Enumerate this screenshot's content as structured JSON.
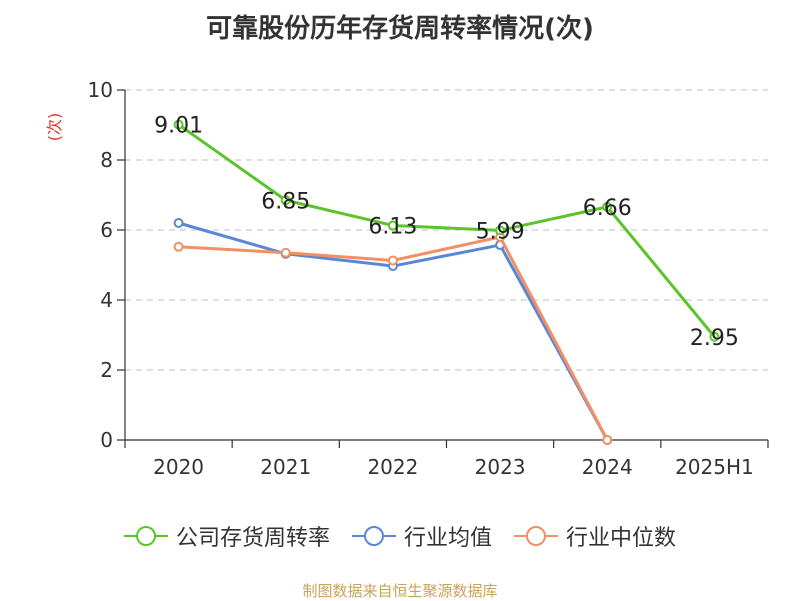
{
  "chart_data": {
    "type": "line",
    "title": "可靠股份历年存货周转率情况(次)",
    "ylabel": "(次)",
    "xlabel": "",
    "categories": [
      "2020",
      "2021",
      "2022",
      "2023",
      "2024",
      "2025H1"
    ],
    "ylim": [
      0,
      10
    ],
    "yticks": [
      0,
      2,
      4,
      6,
      8,
      10
    ],
    "grid": "horizontal dashed",
    "legend_position": "bottom",
    "series": [
      {
        "name": "公司存货周转率",
        "color": "#5cc42a",
        "values": [
          9.01,
          6.85,
          6.13,
          5.99,
          6.66,
          2.95
        ],
        "labels": [
          "9.01",
          "6.85",
          "6.13",
          "5.99",
          "6.66",
          "2.95"
        ]
      },
      {
        "name": "行业均值",
        "color": "#5b86d6",
        "values": [
          6.2,
          5.32,
          4.97,
          5.57,
          0,
          null
        ]
      },
      {
        "name": "行业中位数",
        "color": "#f28f64",
        "values": [
          5.52,
          5.35,
          5.13,
          5.8,
          0,
          null
        ]
      }
    ]
  },
  "source": "制图数据来自恒生聚源数据库"
}
